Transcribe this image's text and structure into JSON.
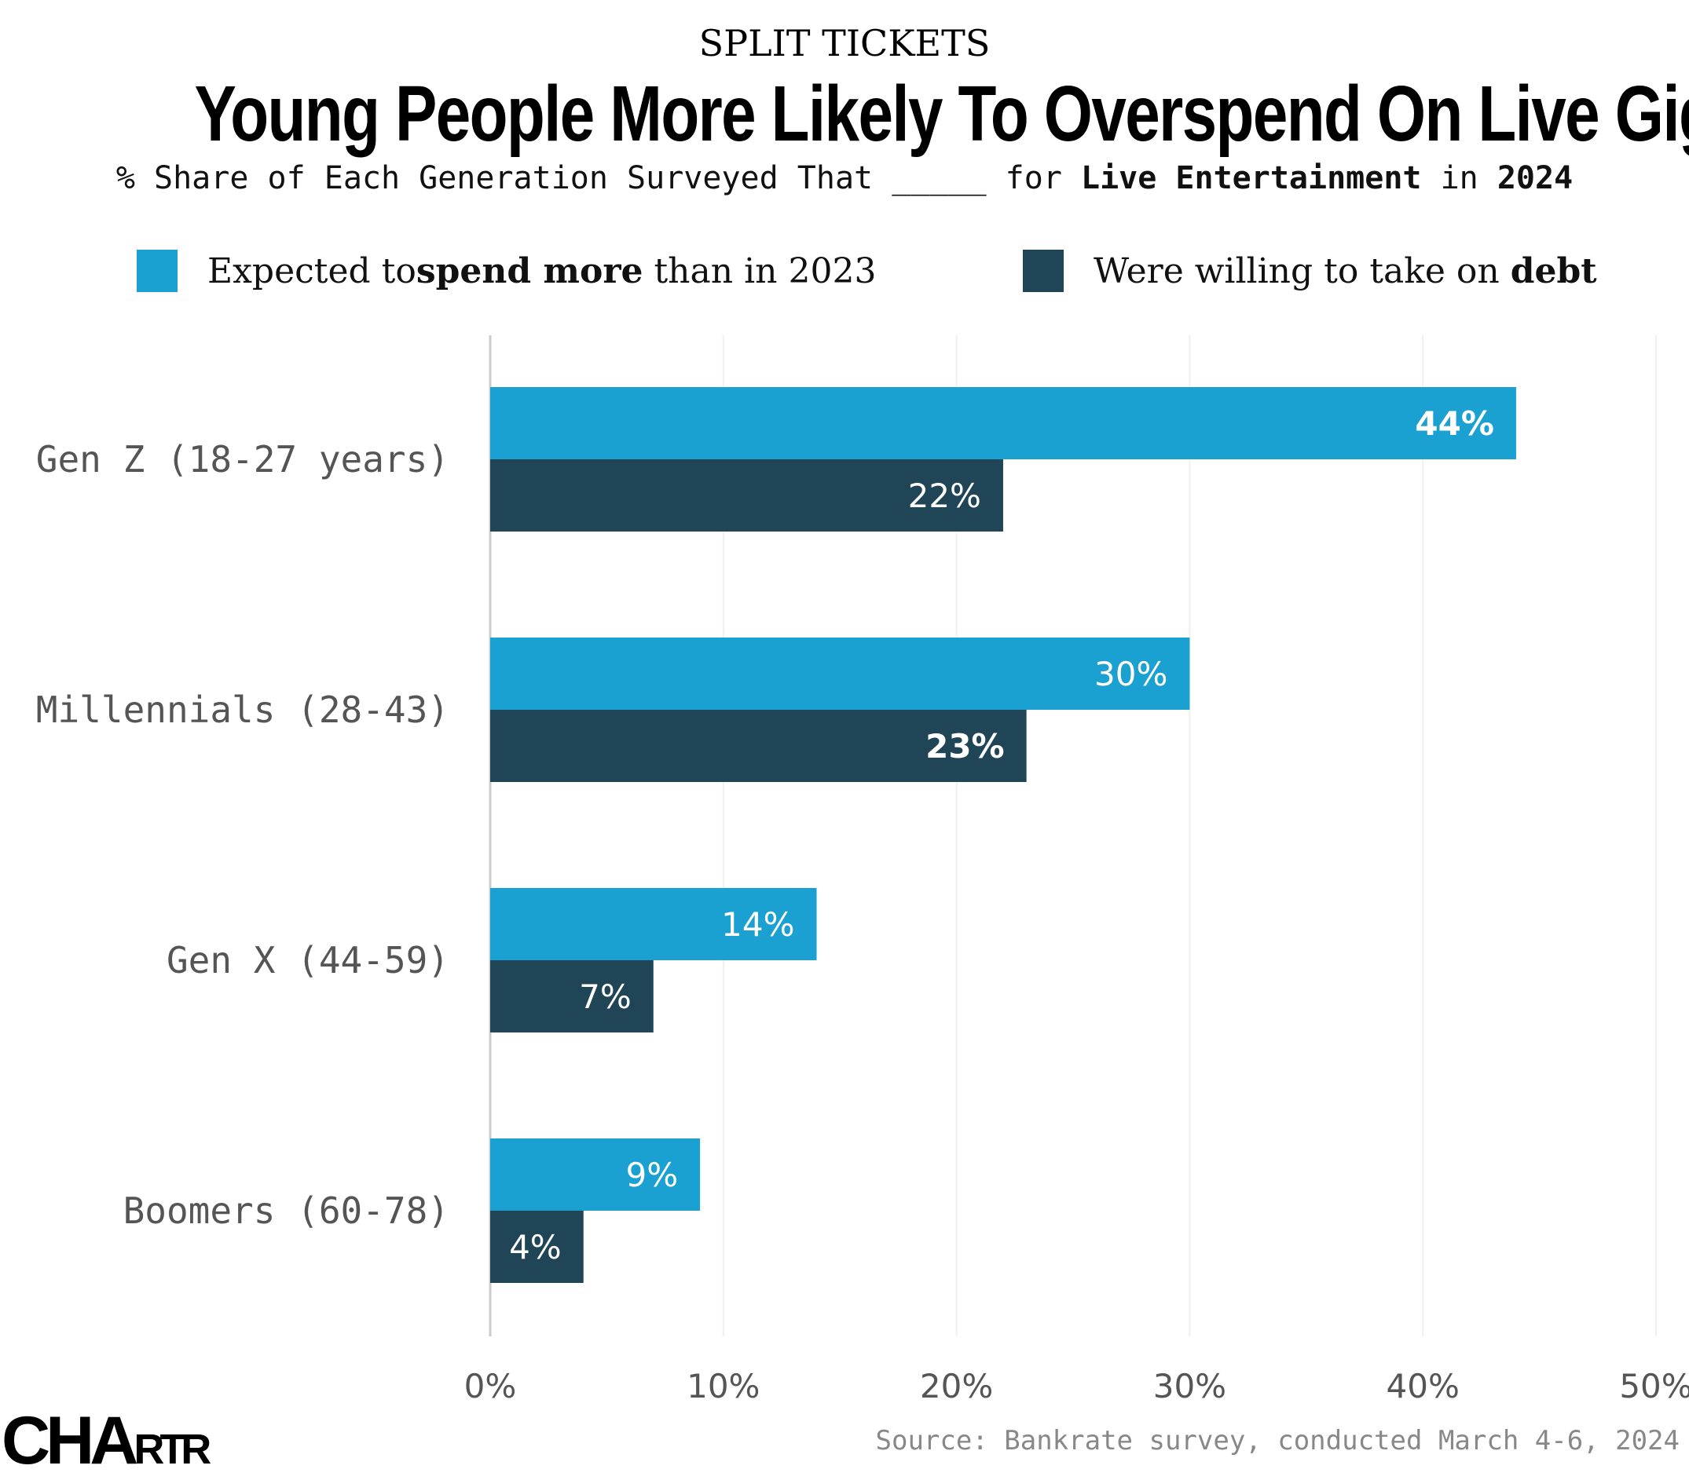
{
  "kicker": "SPLIT TICKETS",
  "title": "Young People More Likely To Overspend On Live Gigs",
  "subtitle": {
    "part1": "% Share of Each Generation Surveyed That _____ for ",
    "bold1": "Live Entertainment",
    "part2": " in ",
    "bold2": "2024"
  },
  "legend": [
    {
      "pre": "Expected to ",
      "bold": "spend more",
      "post": " than in 2023",
      "color": "#1aa1d1"
    },
    {
      "pre": "Were willing to take on ",
      "bold": "debt",
      "post": "",
      "color": "#1f4556"
    }
  ],
  "source": "Source: Bankrate survey, conducted March 4-6, 2024",
  "logo": {
    "main": "CHA",
    "small": "RTR"
  },
  "chart_data": {
    "type": "bar",
    "orientation": "horizontal",
    "categories": [
      "Gen Z (18-27 years)",
      "Millennials (28-43)",
      "Gen X (44-59)",
      "Boomers (60-78)"
    ],
    "series": [
      {
        "name": "Expected to spend more than in 2023",
        "values": [
          44,
          30,
          14,
          9
        ],
        "color": "#1aa1d1"
      },
      {
        "name": "Were willing to take on debt",
        "values": [
          22,
          23,
          7,
          4
        ],
        "color": "#1f4556"
      }
    ],
    "data_labels": [
      [
        "44%",
        "30%",
        "14%",
        "9%"
      ],
      [
        "22%",
        "23%",
        "7%",
        "4%"
      ]
    ],
    "x_ticks": [
      "0%",
      "10%",
      "20%",
      "30%",
      "40%",
      "50%"
    ],
    "xlim": [
      0,
      50
    ],
    "grid": "vertical",
    "legend_position": "top"
  }
}
